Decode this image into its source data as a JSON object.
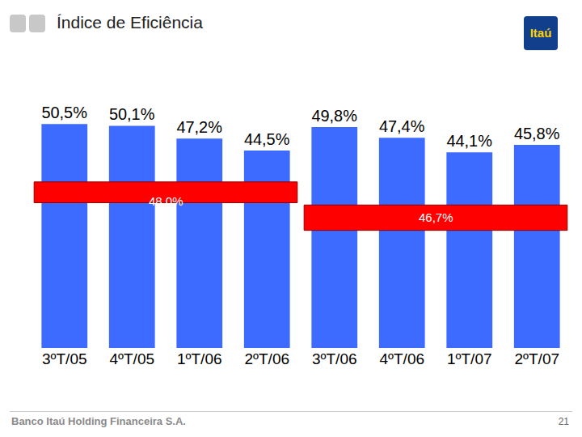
{
  "chart_data": {
    "type": "bar",
    "title": "Índice de Eficiência",
    "categories": [
      "3ºT/05",
      "4ºT/05",
      "1ºT/06",
      "2ºT/06",
      "3ºT/06",
      "4ºT/06",
      "1ºT/07",
      "2ºT/07"
    ],
    "values": [
      50.5,
      50.1,
      47.2,
      44.5,
      49.8,
      47.4,
      44.1,
      45.8
    ],
    "value_labels": [
      "50,5%",
      "50,1%",
      "47,2%",
      "44,5%",
      "49,8%",
      "47,4%",
      "44,1%",
      "45,8%"
    ],
    "data_labels": true,
    "color": "#3d6bff",
    "ylim": [
      0,
      52
    ],
    "tick_labels": "x",
    "grid": false,
    "bands": [
      {
        "label": "48,0%",
        "from": "3ºT/05",
        "to": "2ºT/06",
        "color": "#ff0000"
      },
      {
        "label": "46,7%",
        "from": "3ºT/06",
        "to": "2ºT/07",
        "color": "#ff0000"
      }
    ]
  },
  "slide": {
    "logo": "Itaú",
    "footer": "Banco Itaú Holding Financeira S.A.",
    "page_number": "21"
  }
}
